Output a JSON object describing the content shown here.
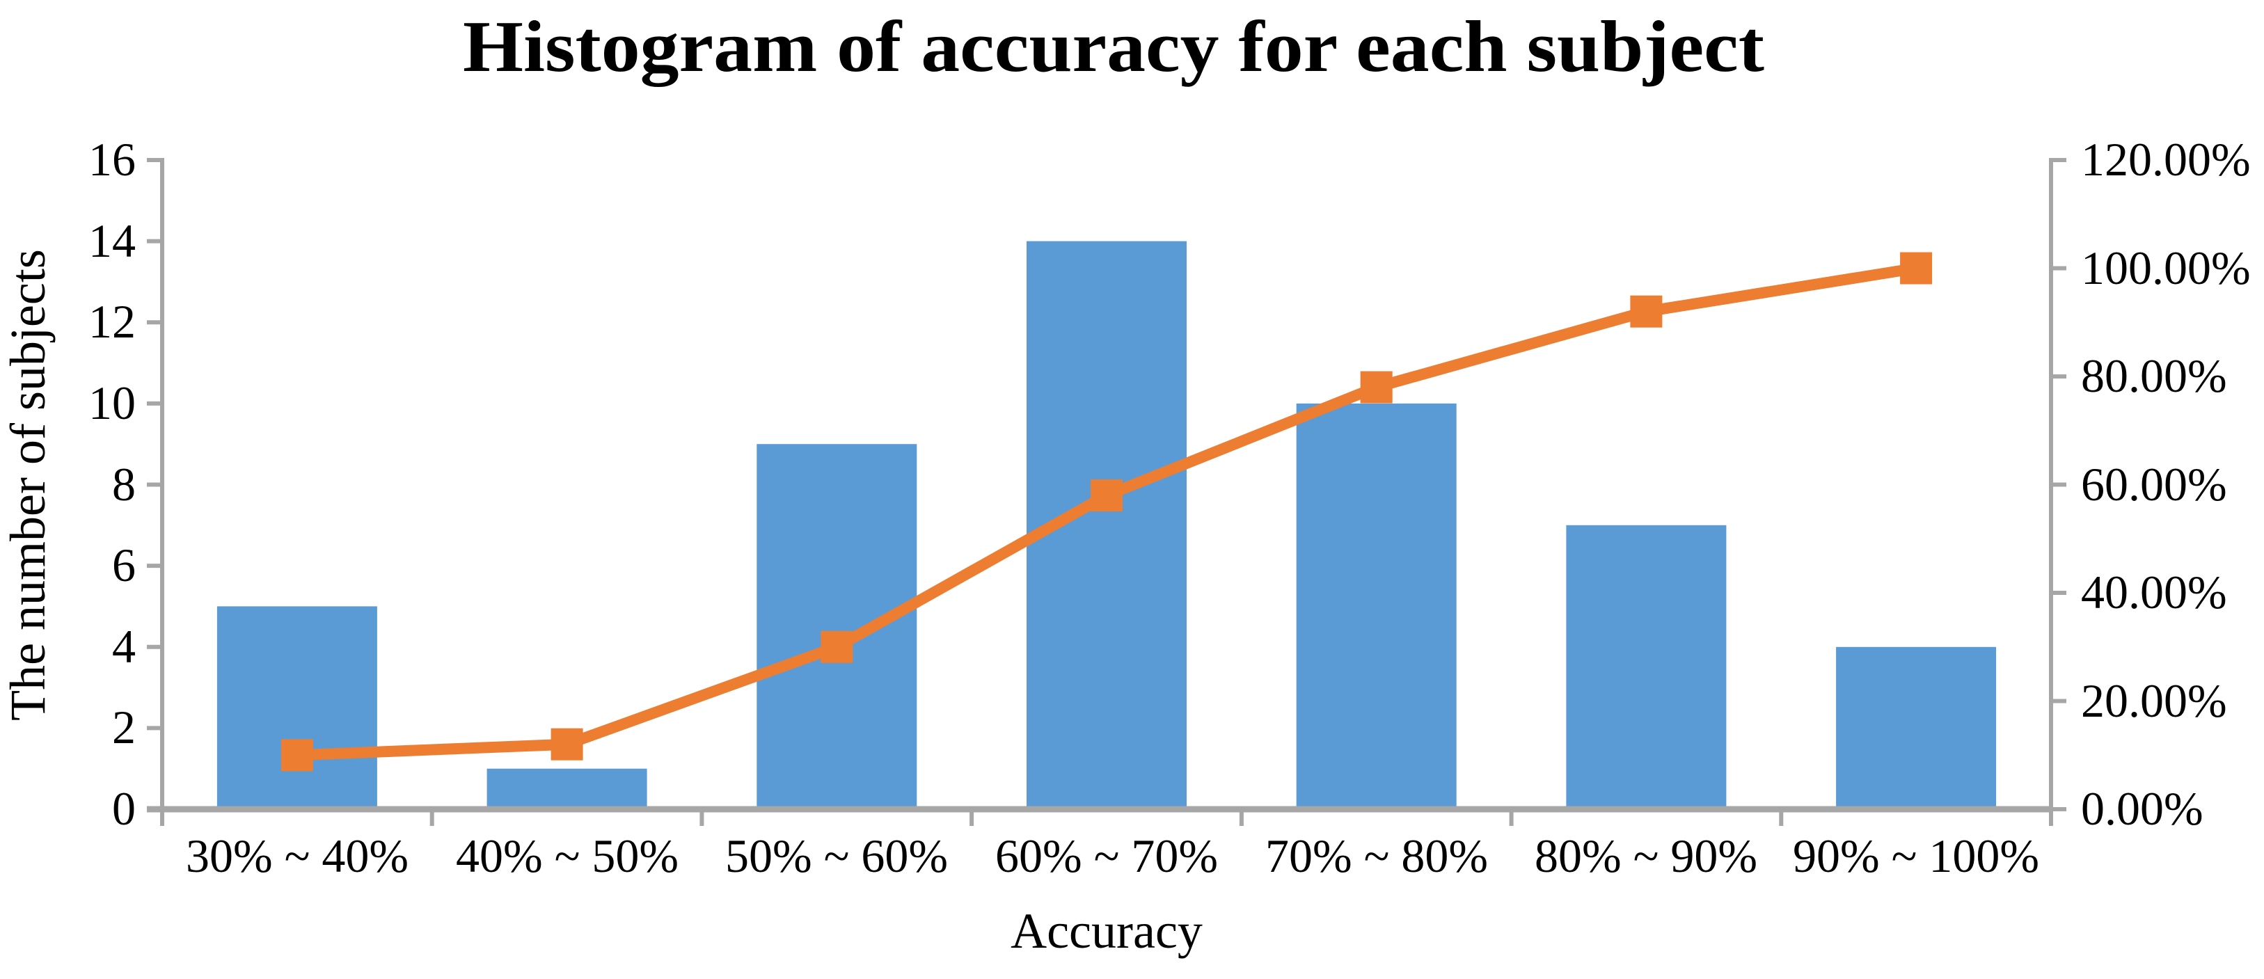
{
  "chart_data": {
    "type": "bar",
    "subtype": "pareto (bars + cumulative percentage line, dual y-axes)",
    "title": "Histogram of accuracy for each subject",
    "xlabel": "Accuracy",
    "ylabel": "The number of subjects",
    "categories": [
      "30% ~ 40%",
      "40% ~ 50%",
      "50% ~ 60%",
      "60% ~ 70%",
      "70% ~ 80%",
      "80% ~ 90%",
      "90% ~ 100%"
    ],
    "series": [
      {
        "name": "The number of subjects",
        "type": "bar",
        "color": "#5B9BD5",
        "values": [
          5,
          1,
          9,
          14,
          10,
          7,
          4
        ]
      },
      {
        "name": "cumulative_percentage",
        "type": "line",
        "color": "#ED7D31",
        "marker": "square",
        "values_percent": [
          10,
          12,
          30,
          58,
          78,
          92,
          100
        ]
      }
    ],
    "left_axis": {
      "min": 0,
      "max": 16,
      "tick_step": 2,
      "tick_labels_top_to_bottom": [
        "16",
        "14",
        "12",
        "10",
        "8",
        "6",
        "4",
        "2",
        "0"
      ]
    },
    "right_axis": {
      "min": 0,
      "max": 120,
      "tick_step": 20,
      "tick_labels_top_to_bottom": [
        "120.00%",
        "100.00%",
        "80.00%",
        "60.00%",
        "40.00%",
        "20.00%",
        "0.00%"
      ]
    },
    "grid": false,
    "legend": false,
    "colors": {
      "bar": "#5B9BD5",
      "line": "#ED7D31",
      "axis": "#A6A6A6",
      "text": "#000000",
      "background": "#FFFFFF"
    }
  }
}
